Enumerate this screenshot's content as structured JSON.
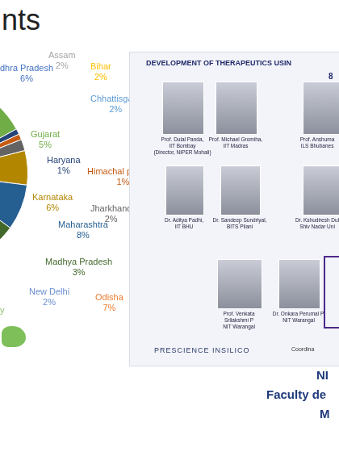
{
  "title": "nts",
  "chart_data": {
    "type": "pie",
    "categories": [
      "dhra Pradesh",
      "Assam",
      "Bihar",
      "Chhattisgarh",
      "Gujarat",
      "Haryana",
      "Himachal pradesh",
      "Jharkhand",
      "Karnataka",
      "Maharashtra",
      "Madhya Pradesh",
      "New Delhi",
      "Odisha",
      "y"
    ],
    "values": [
      6,
      2,
      2,
      2,
      5,
      1,
      1,
      2,
      6,
      8,
      3,
      2,
      7,
      53
    ],
    "value_labels": [
      "6%",
      "2%",
      "2%",
      "2%",
      "5%",
      "1%",
      "1%",
      "2%",
      "6%",
      "8%",
      "3%",
      "2%",
      "7%",
      null
    ],
    "colors": [
      "#4472c4",
      "#a5a5a5",
      "#ffc000",
      "#5b9bd5",
      "#70ad47",
      "#264478",
      "#c55a11",
      "#636363",
      "#b38600",
      "#255e91",
      "#43682b",
      "#698ed0",
      "#ed7d31",
      "#8cc168"
    ],
    "data_labels": true
  },
  "panel": {
    "header": "DEVELOPMENT OF THERAPEUTICS USIN",
    "number": "8",
    "people": [
      [
        "Prof. Dulal Panda,",
        "IIT Bombay",
        "(Director, NIPER Mohali)"
      ],
      [
        "Prof. Michael Gromiha,",
        "IIT Madras"
      ],
      [
        "Prof. Anshuma",
        "ILS Bhubanes"
      ],
      [
        "Dr. Aditya Padhi,",
        "IIT BHU"
      ],
      [
        "Dr. Sandeep Sundriyal,",
        "BITS Pilani"
      ],
      [
        "Dr. Kshudiresh Dul",
        "Shiv Nadar Uni"
      ],
      [
        "Prof. Venkata",
        "Srilakshmi P",
        "NIT Warangal"
      ],
      [
        "Dr. Onkara Perumal P,",
        "NIT Warangal"
      ]
    ],
    "logo": "PRESCIENCE INSILICO",
    "coordinator": "Coordina"
  },
  "footer": [
    "NI",
    "Faculty de",
    "M"
  ]
}
